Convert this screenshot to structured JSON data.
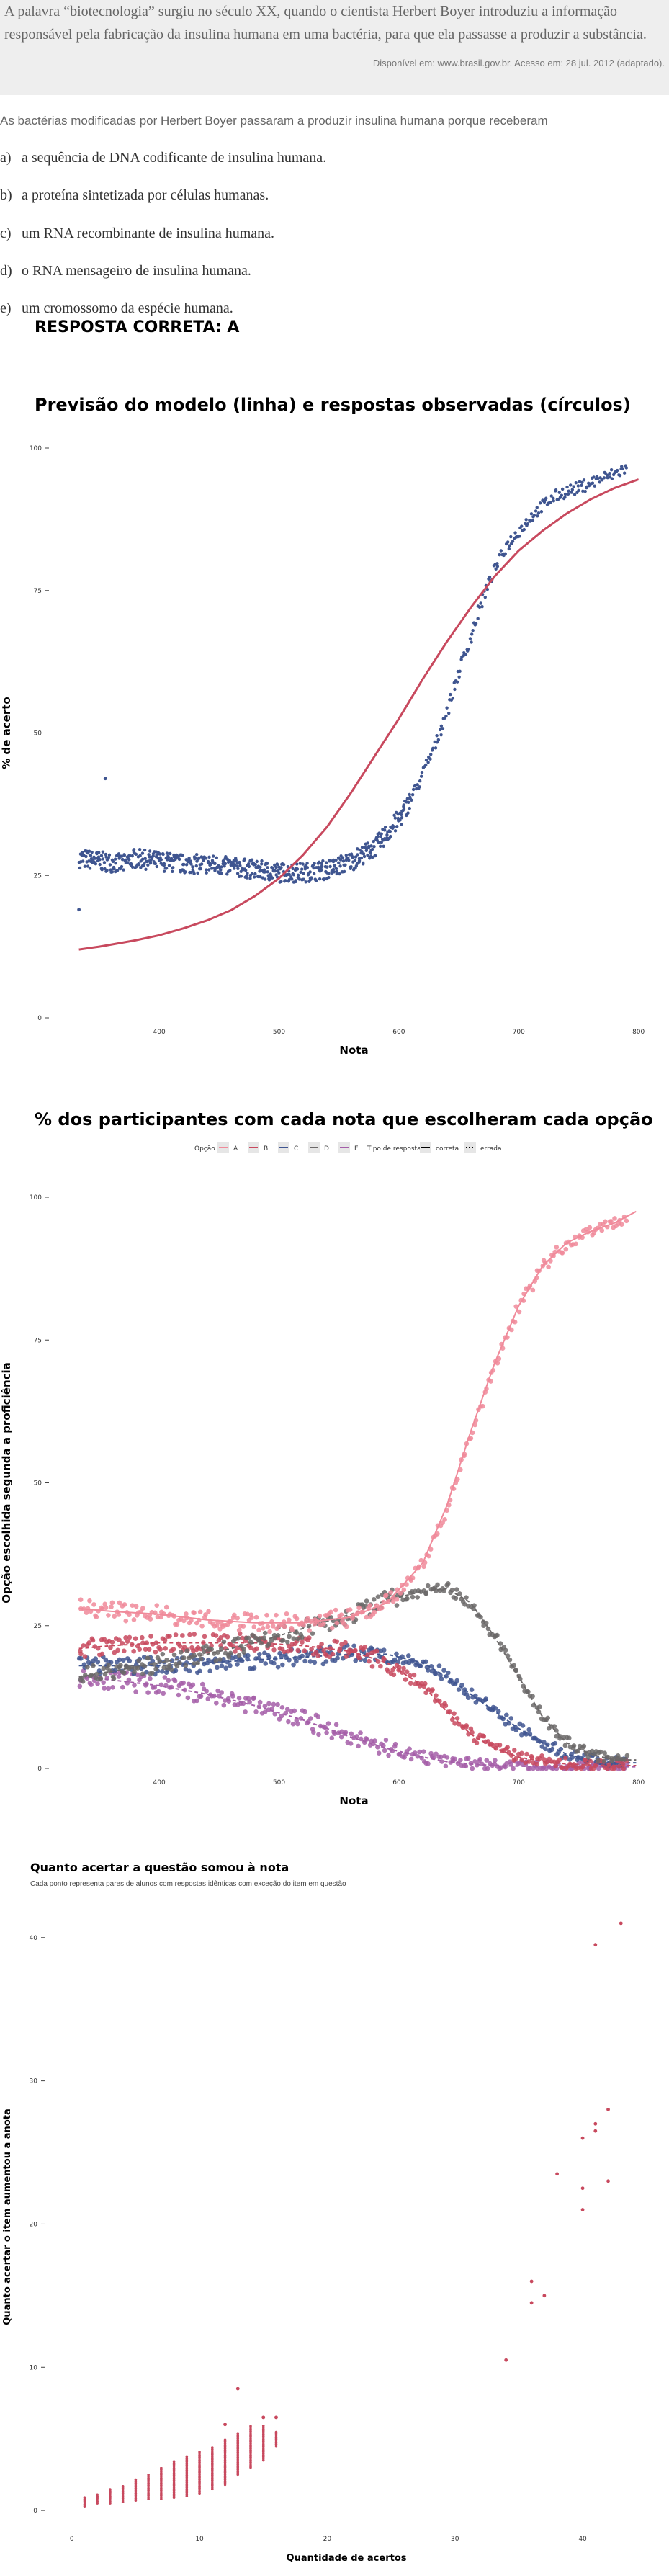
{
  "quote": {
    "text": "A palavra “biotecnologia” surgiu no século XX, quando o cientista Herbert Boyer introduziu a informação responsável pela fabricação da insulina humana em uma bactéria, para que ela passasse a produzir a substância.",
    "source": "Disponível em: www.brasil.gov.br. Acesso em: 28 jul. 2012 (adaptado)."
  },
  "question": {
    "stem": "As bactérias modificadas por Herbert Boyer passaram a produzir insulina humana porque receberam",
    "options": [
      {
        "letter": "a)",
        "text": "a sequência de DNA codificante de insulina humana."
      },
      {
        "letter": "b)",
        "text": "a proteína sintetizada por células humanas."
      },
      {
        "letter": "c)",
        "text": "um RNA recombinante de insulina humana."
      },
      {
        "letter": "d)",
        "text": "o RNA mensageiro de insulina humana."
      },
      {
        "letter": "e)",
        "text": "um cromossomo da espécie humana."
      }
    ],
    "answer": "RESPOSTA CORRETA: A"
  },
  "colors": {
    "A": "#f08a9a",
    "B": "#c8495e",
    "C": "#3f5590",
    "D": "#6b6868",
    "E": "#a45ea8",
    "model_line": "#c8495e",
    "points_chart1": "#3f5590",
    "points_chart3": "#c8495e"
  },
  "chart_data": [
    {
      "type": "scatter",
      "title": "Previsão do modelo (linha) e respostas observadas (círculos)",
      "xlabel": "Nota",
      "ylabel": "% de acerto",
      "xlim": [
        320,
        805
      ],
      "ylim": [
        0,
        100
      ],
      "x_ticks": [
        400,
        500,
        600,
        700,
        800
      ],
      "y_ticks": [
        0,
        25,
        50,
        75,
        100
      ],
      "model_curve": {
        "x": [
          333,
          350,
          380,
          400,
          420,
          440,
          460,
          480,
          500,
          520,
          540,
          560,
          580,
          600,
          620,
          640,
          660,
          680,
          700,
          720,
          740,
          760,
          780,
          800
        ],
        "y": [
          12,
          12.5,
          13.6,
          14.5,
          15.7,
          17.1,
          18.9,
          21.4,
          24.5,
          28.6,
          33.5,
          39.5,
          46,
          52.5,
          59.5,
          66,
          72,
          77.5,
          82,
          85.5,
          88.5,
          91,
          93,
          94.5
        ]
      },
      "observed": {
        "x": [
          333,
          350,
          370,
          378,
          400,
          420,
          440,
          460,
          480,
          500,
          520,
          540,
          560,
          580,
          600,
          610,
          620,
          630,
          640,
          650,
          660,
          670,
          680,
          690,
          700,
          710,
          720,
          730,
          740,
          750,
          760,
          780,
          798
        ],
        "y": [
          28,
          27.5,
          27,
          28,
          27.5,
          27,
          27,
          26.5,
          26,
          25.5,
          25.5,
          26,
          27.5,
          30,
          35,
          38.5,
          43,
          48,
          54,
          61,
          67,
          74,
          79,
          83,
          85.5,
          88,
          90,
          91.5,
          92.5,
          93,
          94,
          95.5,
          97.5
        ]
      },
      "outliers": [
        {
          "x": 333,
          "y": 19
        },
        {
          "x": 355,
          "y": 42
        }
      ]
    },
    {
      "type": "scatter",
      "title": "% dos participantes com cada nota que escolheram cada opção",
      "xlabel": "Nota",
      "ylabel": "Opção escolhida segunda a proficiência",
      "legend": {
        "option_title": "Opção",
        "options": [
          "A",
          "B",
          "C",
          "D",
          "E"
        ],
        "type_title": "Tipo de resposta",
        "types": [
          "correta",
          "errada"
        ],
        "placement": "top"
      },
      "xlim": [
        320,
        805
      ],
      "ylim": [
        0,
        100
      ],
      "x_ticks": [
        400,
        500,
        600,
        700,
        800
      ],
      "y_ticks": [
        0,
        25,
        50,
        75,
        100
      ],
      "x": [
        333,
        360,
        400,
        440,
        480,
        520,
        560,
        590,
        620,
        640,
        660,
        680,
        700,
        720,
        740,
        760,
        780,
        798
      ],
      "series": [
        {
          "name": "A",
          "correct": true,
          "values": [
            28,
            27.5,
            27,
            26,
            25.5,
            25.5,
            26.5,
            29,
            36,
            46,
            59,
            71,
            81,
            88,
            92,
            94,
            95.5,
            97.5
          ]
        },
        {
          "name": "B",
          "correct": false,
          "values": [
            21,
            21.5,
            22,
            22,
            22,
            21.5,
            20.5,
            18.5,
            14.5,
            10,
            6,
            3.5,
            2,
            1.2,
            0.8,
            0.6,
            0.5,
            0.5
          ]
        },
        {
          "name": "C",
          "correct": false,
          "values": [
            18,
            18,
            18,
            18.5,
            19,
            19.5,
            20,
            20,
            18.5,
            16,
            13,
            10,
            7,
            4.5,
            2.5,
            1.5,
            1,
            1
          ]
        },
        {
          "name": "D",
          "correct": false,
          "values": [
            16,
            17,
            18.5,
            20,
            22,
            24.5,
            27,
            29.5,
            31,
            31.5,
            29,
            23,
            16,
            9,
            4.5,
            2.5,
            1.5,
            1.5
          ]
        },
        {
          "name": "E",
          "correct": false,
          "values": [
            16,
            15.5,
            14.5,
            13,
            11,
            8.5,
            5.5,
            3.5,
            2,
            1.2,
            0.8,
            0.5,
            0.4,
            0.3,
            0.3,
            0.3,
            0.3,
            0.3
          ]
        }
      ]
    },
    {
      "type": "scatter",
      "title": "Quanto acertar a questão somou à nota",
      "subtitle": "Cada ponto representa pares de alunos com respostas idênticas com exceção do item em questão",
      "xlabel": "Quantidade de acertos",
      "ylabel": "Quanto acertar o item aumentou a anota",
      "xlim": [
        -1,
        44
      ],
      "ylim": [
        -1,
        42
      ],
      "x_ticks": [
        0,
        10,
        20,
        30,
        40
      ],
      "y_ticks": [
        0,
        10,
        20,
        30,
        40
      ],
      "columns": [
        {
          "x": 1,
          "min": 0.3,
          "max": 1
        },
        {
          "x": 2,
          "min": 0.5,
          "max": 1.2
        },
        {
          "x": 3,
          "min": 0.5,
          "max": 1.5
        },
        {
          "x": 4,
          "min": 0.6,
          "max": 1.8
        },
        {
          "x": 5,
          "min": 0.7,
          "max": 2.2
        },
        {
          "x": 6,
          "min": 0.8,
          "max": 2.6
        },
        {
          "x": 7,
          "min": 0.8,
          "max": 3
        },
        {
          "x": 8,
          "min": 0.9,
          "max": 3.5
        },
        {
          "x": 9,
          "min": 1,
          "max": 3.8
        },
        {
          "x": 10,
          "min": 1.2,
          "max": 4.2
        },
        {
          "x": 11,
          "min": 1.5,
          "max": 4.5
        },
        {
          "x": 12,
          "min": 1.8,
          "max": 5
        },
        {
          "x": 13,
          "min": 2.5,
          "max": 5.5
        },
        {
          "x": 14,
          "min": 3,
          "max": 6
        },
        {
          "x": 15,
          "min": 3.5,
          "max": 6
        },
        {
          "x": 16,
          "min": 4.5,
          "max": 5.5
        }
      ],
      "points": [
        {
          "x": 12,
          "y": 6
        },
        {
          "x": 13,
          "y": 8.5
        },
        {
          "x": 15,
          "y": 6.5
        },
        {
          "x": 16,
          "y": 6.5
        },
        {
          "x": 34,
          "y": 10.5
        },
        {
          "x": 36,
          "y": 14.5
        },
        {
          "x": 36,
          "y": 16
        },
        {
          "x": 37,
          "y": 15
        },
        {
          "x": 38,
          "y": 23.5
        },
        {
          "x": 40,
          "y": 21
        },
        {
          "x": 40,
          "y": 22.5
        },
        {
          "x": 40,
          "y": 26
        },
        {
          "x": 41,
          "y": 26.5
        },
        {
          "x": 41,
          "y": 27
        },
        {
          "x": 41,
          "y": 39.5
        },
        {
          "x": 42,
          "y": 23
        },
        {
          "x": 42,
          "y": 28
        },
        {
          "x": 43,
          "y": 41
        }
      ]
    }
  ]
}
